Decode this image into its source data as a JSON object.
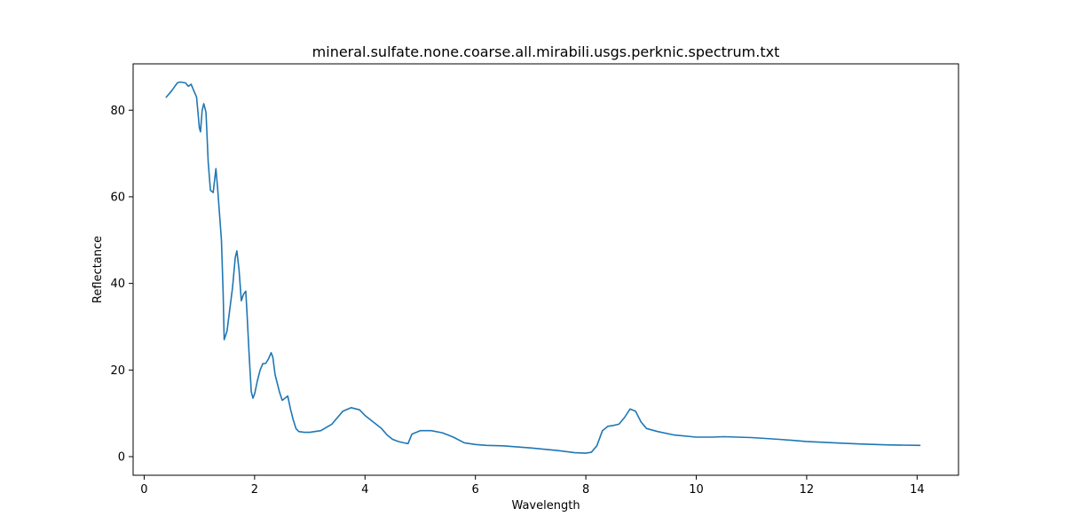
{
  "chart_data": {
    "type": "line",
    "title": "mineral.sulfate.none.coarse.all.mirabili.usgs.perknic.spectrum.txt",
    "xlabel": "Wavelength",
    "ylabel": "Reflectance",
    "xlim": [
      -0.2,
      14.75
    ],
    "ylim": [
      -4.3,
      90.7
    ],
    "xticks": [
      0,
      2,
      4,
      6,
      8,
      10,
      12,
      14
    ],
    "yticks": [
      0,
      20,
      40,
      60,
      80
    ],
    "grid": false,
    "legend": "none",
    "series_color": "#1f77b4",
    "series": [
      {
        "x": [
          0.4,
          0.5,
          0.6,
          0.65,
          0.75,
          0.8,
          0.85,
          0.9,
          0.95,
          1.0,
          1.02,
          1.05,
          1.08,
          1.12,
          1.16,
          1.2,
          1.25,
          1.3,
          1.33,
          1.36,
          1.4,
          1.43,
          1.45,
          1.5,
          1.55,
          1.6,
          1.65,
          1.68,
          1.72,
          1.76,
          1.8,
          1.84,
          1.86,
          1.9,
          1.94,
          1.97,
          2.0,
          2.05,
          2.1,
          2.15,
          2.2,
          2.25,
          2.3,
          2.33,
          2.37,
          2.4,
          2.45,
          2.5,
          2.55,
          2.6,
          2.65,
          2.7,
          2.75,
          2.8,
          2.9,
          3.0,
          3.2,
          3.4,
          3.6,
          3.75,
          3.9,
          4.0,
          4.1,
          4.2,
          4.3,
          4.4,
          4.5,
          4.6,
          4.7,
          4.78,
          4.85,
          5.0,
          5.2,
          5.4,
          5.6,
          5.8,
          6.0,
          6.2,
          6.5,
          7.0,
          7.5,
          7.8,
          8.0,
          8.1,
          8.2,
          8.3,
          8.4,
          8.5,
          8.6,
          8.7,
          8.8,
          8.9,
          9.0,
          9.1,
          9.3,
          9.6,
          10.0,
          10.3,
          10.5,
          11.0,
          11.5,
          12.0,
          12.5,
          13.0,
          13.5,
          14.05
        ],
        "y": [
          83,
          84.5,
          86.3,
          86.5,
          86.3,
          85.5,
          86,
          84.5,
          83,
          76,
          75,
          80,
          81.5,
          79.5,
          68,
          61.5,
          61,
          66.5,
          62,
          57,
          50,
          38,
          27,
          29,
          34,
          39,
          46,
          47.5,
          43,
          36,
          37.5,
          38.2,
          34,
          24,
          15,
          13.5,
          14.5,
          17.5,
          20,
          21.5,
          21.5,
          22.5,
          24,
          23,
          19,
          17.5,
          15,
          13,
          13.5,
          14,
          11,
          8.5,
          6.5,
          5.8,
          5.6,
          5.6,
          6.0,
          7.5,
          10.5,
          11.3,
          10.8,
          9.5,
          8.5,
          7.5,
          6.5,
          5.0,
          4.0,
          3.5,
          3.2,
          3.0,
          5.2,
          6.0,
          6.0,
          5.5,
          4.5,
          3.2,
          2.8,
          2.6,
          2.5,
          2.0,
          1.4,
          0.9,
          0.8,
          1.0,
          2.5,
          6.0,
          7.0,
          7.2,
          7.5,
          9.0,
          11.0,
          10.5,
          8.0,
          6.5,
          5.8,
          5.0,
          4.5,
          4.5,
          4.6,
          4.4,
          4.0,
          3.5,
          3.2,
          2.9,
          2.7,
          2.6
        ]
      }
    ]
  }
}
